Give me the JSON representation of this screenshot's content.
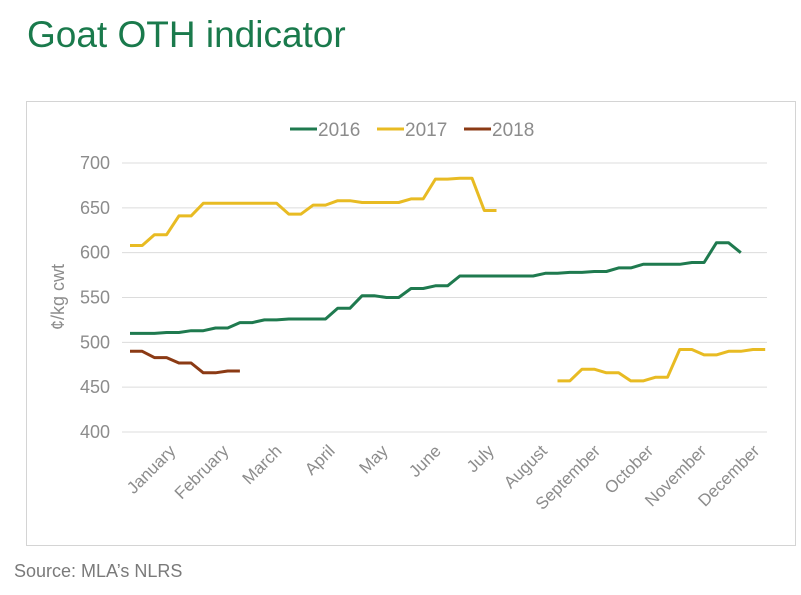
{
  "title": "Goat OTH indicator",
  "source": "Source: MLA’s NLRS",
  "chart_data": {
    "type": "line",
    "title": "",
    "xlabel": "",
    "ylabel": "¢/kg cwt",
    "ylim": [
      400,
      700
    ],
    "yticks": [
      400,
      450,
      500,
      550,
      600,
      650,
      700
    ],
    "x_unit": "week",
    "x_range": [
      1,
      52
    ],
    "categories": [
      "January",
      "February",
      "March",
      "April",
      "May",
      "June",
      "July",
      "August",
      "September",
      "October",
      "November",
      "December"
    ],
    "grid": true,
    "legend_position": "top-center",
    "series": [
      {
        "name": "2016",
        "color": "#1f7a4f",
        "points": [
          [
            1,
            510
          ],
          [
            2,
            510
          ],
          [
            3,
            510
          ],
          [
            4,
            511
          ],
          [
            5,
            511
          ],
          [
            6,
            513
          ],
          [
            7,
            513
          ],
          [
            8,
            516
          ],
          [
            9,
            516
          ],
          [
            10,
            522
          ],
          [
            11,
            522
          ],
          [
            12,
            525
          ],
          [
            13,
            525
          ],
          [
            14,
            526
          ],
          [
            15,
            526
          ],
          [
            16,
            526
          ],
          [
            17,
            526
          ],
          [
            18,
            538
          ],
          [
            19,
            538
          ],
          [
            20,
            552
          ],
          [
            21,
            552
          ],
          [
            22,
            550
          ],
          [
            23,
            550
          ],
          [
            24,
            560
          ],
          [
            25,
            560
          ],
          [
            26,
            563
          ],
          [
            27,
            563
          ],
          [
            28,
            574
          ],
          [
            29,
            574
          ],
          [
            30,
            574
          ],
          [
            31,
            574
          ],
          [
            32,
            574
          ],
          [
            33,
            574
          ],
          [
            34,
            574
          ],
          [
            35,
            577
          ],
          [
            36,
            577
          ],
          [
            37,
            578
          ],
          [
            38,
            578
          ],
          [
            39,
            579
          ],
          [
            40,
            579
          ],
          [
            41,
            583
          ],
          [
            42,
            583
          ],
          [
            43,
            587
          ],
          [
            44,
            587
          ],
          [
            45,
            587
          ],
          [
            46,
            587
          ],
          [
            47,
            589
          ],
          [
            48,
            589
          ],
          [
            49,
            611
          ],
          [
            50,
            611
          ],
          [
            51,
            600
          ]
        ]
      },
      {
        "name": "2017",
        "color": "#e8bb23",
        "segments": [
          [
            [
              1,
              608
            ],
            [
              2,
              608
            ],
            [
              3,
              620
            ],
            [
              4,
              620
            ],
            [
              5,
              641
            ],
            [
              6,
              641
            ],
            [
              7,
              655
            ],
            [
              8,
              655
            ],
            [
              9,
              655
            ],
            [
              10,
              655
            ],
            [
              11,
              655
            ],
            [
              12,
              655
            ],
            [
              13,
              655
            ],
            [
              14,
              643
            ],
            [
              15,
              643
            ],
            [
              16,
              653
            ],
            [
              17,
              653
            ],
            [
              18,
              658
            ],
            [
              19,
              658
            ],
            [
              20,
              656
            ],
            [
              21,
              656
            ],
            [
              22,
              656
            ],
            [
              23,
              656
            ],
            [
              24,
              660
            ],
            [
              25,
              660
            ],
            [
              26,
              682
            ],
            [
              27,
              682
            ],
            [
              28,
              683
            ],
            [
              29,
              683
            ],
            [
              30,
              647
            ],
            [
              31,
              647
            ]
          ],
          [
            [
              36,
              457
            ],
            [
              37,
              457
            ],
            [
              38,
              470
            ],
            [
              39,
              470
            ],
            [
              40,
              466
            ],
            [
              41,
              466
            ],
            [
              42,
              457
            ],
            [
              43,
              457
            ],
            [
              44,
              461
            ],
            [
              45,
              461
            ],
            [
              46,
              492
            ],
            [
              47,
              492
            ],
            [
              48,
              486
            ],
            [
              49,
              486
            ],
            [
              50,
              490
            ],
            [
              51,
              490
            ],
            [
              52,
              492
            ],
            [
              53,
              492
            ]
          ]
        ]
      },
      {
        "name": "2018",
        "color": "#8b3a14",
        "points": [
          [
            1,
            490
          ],
          [
            2,
            490
          ],
          [
            3,
            483
          ],
          [
            4,
            483
          ],
          [
            5,
            477
          ],
          [
            6,
            477
          ],
          [
            7,
            466
          ],
          [
            8,
            466
          ],
          [
            9,
            468
          ],
          [
            10,
            468
          ]
        ]
      }
    ]
  }
}
